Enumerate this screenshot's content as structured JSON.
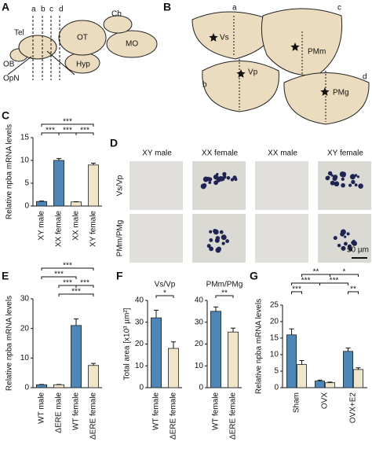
{
  "panels": {
    "A": {
      "letter": "A",
      "labels": [
        "Tel",
        "a",
        "b",
        "c",
        "d",
        "Cb",
        "OT",
        "MO",
        "OB",
        "Hyp",
        "OpN"
      ]
    },
    "B": {
      "letter": "B",
      "labels": [
        "a",
        "Vs",
        "c",
        "b",
        "Vp",
        "PMm",
        "d",
        "PMg"
      ]
    },
    "C": {
      "letter": "C"
    },
    "D": {
      "letter": "D",
      "columns": [
        "XY male",
        "XX female",
        "XX male",
        "XY female"
      ],
      "rows": [
        "Vs/Vp",
        "PMm/PMg"
      ],
      "scale_bar": "50 µm"
    },
    "E": {
      "letter": "E"
    },
    "F": {
      "letter": "F"
    },
    "G": {
      "letter": "G"
    }
  },
  "chart_data": [
    {
      "type": "bar",
      "ylabel": "Relative npba mRNA levels",
      "categories": [
        "XY male",
        "XX female",
        "XX male",
        "XY female"
      ],
      "values": [
        1,
        10,
        0.9,
        9
      ],
      "errors": [
        0.1,
        0.4,
        0.05,
        0.4
      ],
      "colors": [
        "#4f86b8",
        "#4f86b8",
        "#efe5c8",
        "#efe5c8"
      ],
      "ylim": [
        0,
        15
      ],
      "yticks": [
        0,
        5,
        10,
        15
      ],
      "annotations": [
        "***",
        "***",
        "***",
        "***"
      ]
    },
    {
      "type": "bar",
      "ylabel": "Relative npba mRNA levels",
      "categories": [
        "WT male",
        "ΔERE male",
        "WT female",
        "ΔERE female"
      ],
      "values": [
        1,
        1,
        21,
        7.5
      ],
      "errors": [
        0.1,
        0.1,
        2.2,
        0.7
      ],
      "colors": [
        "#4f86b8",
        "#efe5c8",
        "#4f86b8",
        "#efe5c8"
      ],
      "ylim": [
        0,
        30
      ],
      "yticks": [
        0,
        10,
        20,
        30
      ],
      "annotations": [
        "***",
        "***",
        "***",
        "***",
        "***"
      ]
    },
    {
      "type": "bar",
      "title": "Vs/Vp",
      "ylabel": "Total area [x10³ µm²]",
      "categories": [
        "WT female",
        "ΔERE female"
      ],
      "values": [
        32,
        18
      ],
      "errors": [
        3.5,
        3
      ],
      "colors": [
        "#4f86b8",
        "#efe5c8"
      ],
      "ylim": [
        0,
        40
      ],
      "yticks": [
        0,
        10,
        20,
        30,
        40
      ],
      "annotations": [
        "*"
      ]
    },
    {
      "type": "bar",
      "title": "PMm/PMg",
      "categories": [
        "WT female",
        "ΔERE female"
      ],
      "values": [
        35,
        25.5
      ],
      "errors": [
        2,
        1.8
      ],
      "colors": [
        "#4f86b8",
        "#efe5c8"
      ],
      "ylim": [
        0,
        40
      ],
      "yticks": [
        0,
        10,
        20,
        30,
        40
      ],
      "annotations": [
        "**"
      ]
    },
    {
      "type": "grouped",
      "ylabel": "Relative npba mRNA levels",
      "categories": [
        "Sham",
        "OVX",
        "OVX+E2"
      ],
      "series": [
        {
          "color": "#4f86b8",
          "values": [
            16,
            2,
            11
          ],
          "errors": [
            1.8,
            0.3,
            1
          ]
        },
        {
          "color": "#efe5c8",
          "values": [
            7,
            1.5,
            5.5
          ],
          "errors": [
            1.2,
            0.2,
            0.5
          ]
        }
      ],
      "ylim": [
        0,
        25
      ],
      "yticks": [
        0,
        5,
        10,
        15,
        20,
        25
      ],
      "annotations": [
        "**",
        "*",
        "***",
        "***",
        "***",
        "**"
      ]
    }
  ]
}
